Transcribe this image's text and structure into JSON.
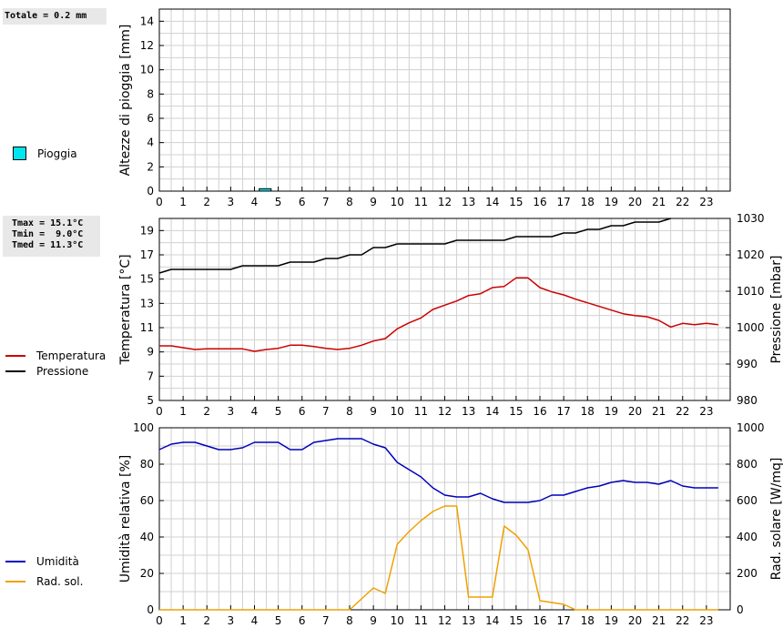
{
  "header": {
    "rain_total": "Totale = 0.2 mm",
    "temp_stats": "Tmax = 15.1°C\nTmin =  9.0°C\nTmed = 11.3°C"
  },
  "legend": {
    "rain": "Pioggia",
    "temperature": "Temperatura",
    "pressure": "Pressione",
    "humidity": "Umidità",
    "radiation": "Rad. sol."
  },
  "colors": {
    "rain_fill": "#00e5ee",
    "temperature": "#cc0000",
    "pressure": "#000000",
    "humidity": "#0000bb",
    "radiation": "#f0a000",
    "grid": "#d0d0d0"
  },
  "chart_data": [
    {
      "type": "bar",
      "ylabel": "Altezze di pioggia [mm]",
      "ylim": [
        0,
        15
      ],
      "yticks": [
        0,
        2,
        4,
        6,
        8,
        10,
        12,
        14
      ],
      "xlim": [
        0,
        24
      ],
      "xticks": [
        0,
        1,
        2,
        3,
        4,
        5,
        6,
        7,
        8,
        9,
        10,
        11,
        12,
        13,
        14,
        15,
        16,
        17,
        18,
        19,
        20,
        21,
        22,
        23
      ],
      "series": [
        {
          "name": "Pioggia",
          "bars": [
            {
              "x": 4.2,
              "width": 0.5,
              "value": 0.2
            }
          ]
        }
      ]
    },
    {
      "type": "line",
      "ylabel": "Temperatura [°C]",
      "y2label": "Pressione [mbar]",
      "ylim": [
        5,
        20
      ],
      "yticks": [
        5,
        7,
        9,
        11,
        13,
        15,
        17,
        19
      ],
      "y2lim": [
        980,
        1030
      ],
      "y2ticks": [
        980,
        990,
        1000,
        1010,
        1020,
        1030
      ],
      "xlim": [
        0,
        24
      ],
      "xticks": [
        0,
        1,
        2,
        3,
        4,
        5,
        6,
        7,
        8,
        9,
        10,
        11,
        12,
        13,
        14,
        15,
        16,
        17,
        18,
        19,
        20,
        21,
        22,
        23
      ],
      "series": [
        {
          "name": "Temperatura",
          "axis": "left",
          "x": [
            0,
            0.5,
            1,
            1.5,
            2,
            2.5,
            3,
            3.5,
            4,
            4.5,
            5,
            5.5,
            6,
            6.5,
            7,
            7.5,
            8,
            8.5,
            9,
            9.5,
            10,
            10.5,
            11,
            11.5,
            12,
            12.5,
            13,
            13.5,
            14,
            14.5,
            15,
            15.5,
            16,
            16.5,
            17,
            17.5,
            18,
            18.5,
            19,
            19.5,
            20,
            20.5,
            21,
            21.5,
            22,
            22.5,
            23,
            23.5
          ],
          "y": [
            9.5,
            9.5,
            9.35,
            9.2,
            9.25,
            9.25,
            9.25,
            9.25,
            9.05,
            9.2,
            9.3,
            9.55,
            9.55,
            9.45,
            9.3,
            9.2,
            9.3,
            9.55,
            9.9,
            10.1,
            10.9,
            11.4,
            11.8,
            12.5,
            12.85,
            13.2,
            13.65,
            13.8,
            14.3,
            14.4,
            15.1,
            15.1,
            14.3,
            13.95,
            13.7,
            13.35,
            13.05,
            12.75,
            12.45,
            12.15,
            12.0,
            11.9,
            11.6,
            11.05,
            11.35,
            11.25,
            11.35,
            11.25
          ]
        },
        {
          "name": "Pressione",
          "axis": "right",
          "x": [
            0,
            0.5,
            1,
            1.5,
            2,
            2.5,
            3,
            3.5,
            4,
            4.5,
            5,
            5.5,
            6,
            6.5,
            7,
            7.5,
            8,
            8.5,
            9,
            9.5,
            10,
            10.5,
            11,
            11.5,
            12,
            12.5,
            13,
            13.5,
            14,
            14.5,
            15,
            15.5,
            16,
            16.5,
            17,
            17.5,
            18,
            18.5,
            19,
            19.5,
            20,
            20.5,
            21,
            21.5
          ],
          "y": [
            1015,
            1016,
            1016,
            1016,
            1016,
            1016,
            1016,
            1017,
            1017,
            1017,
            1017,
            1018,
            1018,
            1018,
            1019,
            1019,
            1020,
            1020,
            1022,
            1022,
            1023,
            1023,
            1023,
            1023,
            1023,
            1024,
            1024,
            1024,
            1024,
            1024,
            1025,
            1025,
            1025,
            1025,
            1026,
            1026,
            1027,
            1027,
            1028,
            1028,
            1029,
            1029,
            1029,
            1030
          ]
        }
      ]
    },
    {
      "type": "line",
      "ylabel": "Umidità relativa [%]",
      "y2label": "Rad. solare [W/mq]",
      "ylim": [
        0,
        100
      ],
      "yticks": [
        0,
        20,
        40,
        60,
        80,
        100
      ],
      "y2lim": [
        0,
        1000
      ],
      "y2ticks": [
        0,
        200,
        400,
        600,
        800,
        1000
      ],
      "xlim": [
        0,
        24
      ],
      "xticks": [
        0,
        1,
        2,
        3,
        4,
        5,
        6,
        7,
        8,
        9,
        10,
        11,
        12,
        13,
        14,
        15,
        16,
        17,
        18,
        19,
        20,
        21,
        22,
        23
      ],
      "series": [
        {
          "name": "Umidità",
          "axis": "left",
          "x": [
            0,
            0.5,
            1,
            1.5,
            2,
            2.5,
            3,
            3.5,
            4,
            4.5,
            5,
            5.5,
            6,
            6.5,
            7,
            7.5,
            8,
            8.5,
            9,
            9.5,
            10,
            10.5,
            11,
            11.5,
            12,
            12.5,
            13,
            13.5,
            14,
            14.5,
            15,
            15.5,
            16,
            16.5,
            17,
            17.5,
            18,
            18.5,
            19,
            19.5,
            20,
            20.5,
            21,
            21.5,
            22,
            22.5,
            23,
            23.5
          ],
          "y": [
            88,
            91,
            92,
            92,
            90,
            88,
            88,
            89,
            92,
            92,
            92,
            88,
            88,
            92,
            93,
            94,
            94,
            94,
            91,
            89,
            81,
            77,
            73,
            67,
            63,
            62,
            62,
            64,
            61,
            59,
            59,
            59,
            60,
            63,
            63,
            65,
            67,
            68,
            70,
            71,
            70,
            70,
            69,
            71,
            68,
            67,
            67,
            67
          ]
        },
        {
          "name": "Rad. sol.",
          "axis": "right",
          "x": [
            0,
            0.5,
            1,
            1.5,
            2,
            2.5,
            3,
            3.5,
            4,
            4.5,
            5,
            5.5,
            6,
            6.5,
            7,
            7.5,
            8,
            8.5,
            9,
            9.5,
            10,
            10.5,
            11,
            11.5,
            12,
            12.5,
            13,
            13.5,
            14,
            14.5,
            15,
            15.5,
            16,
            16.5,
            17,
            17.5,
            18,
            18.5,
            19,
            19.5,
            20,
            20.5,
            21,
            21.5,
            22,
            22.5,
            23,
            23.5
          ],
          "y": [
            0,
            0,
            0,
            0,
            0,
            0,
            0,
            0,
            0,
            0,
            0,
            0,
            0,
            0,
            0,
            0,
            0,
            60,
            120,
            90,
            360,
            430,
            490,
            540,
            570,
            570,
            70,
            70,
            70,
            460,
            410,
            330,
            50,
            40,
            30,
            0,
            0,
            0,
            0,
            0,
            0,
            0,
            0,
            0,
            0,
            0,
            0,
            0
          ]
        }
      ]
    }
  ]
}
